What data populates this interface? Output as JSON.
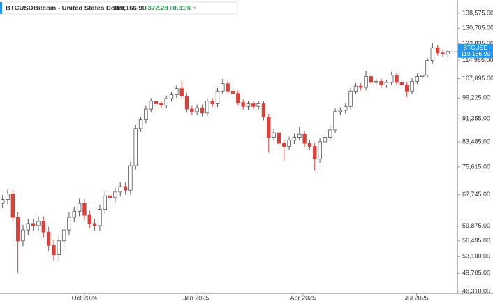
{
  "header": {
    "symbol": "BTCUSD",
    "name": "Bitcoin - United States Dollar",
    "price": "119,166.90",
    "change": "+372.28",
    "change_percent": "+0.31%"
  },
  "chart_data": {
    "type": "candlestick",
    "log": true,
    "up_color": "#ffffff",
    "up_edge": "#555555",
    "down_color": "#d9413a",
    "price_badge_color": "#2196f3",
    "ylim": [
      45930,
      146000
    ],
    "yticks": [
      {
        "value": 46310,
        "label": "46,310.00"
      },
      {
        "value": 49705,
        "label": "49,705.00"
      },
      {
        "value": 53100,
        "label": "53,100.00"
      },
      {
        "value": 56495,
        "label": "56,495.00"
      },
      {
        "value": 59875,
        "label": "59,875.00"
      },
      {
        "value": 67745,
        "label": "67,745.00"
      },
      {
        "value": 75615,
        "label": "75,615.00"
      },
      {
        "value": 83485,
        "label": "83,485.00"
      },
      {
        "value": 91355,
        "label": "91,355.00"
      },
      {
        "value": 99225,
        "label": "99,225.00"
      },
      {
        "value": 107095,
        "label": "107,095.00"
      },
      {
        "value": 114965,
        "label": "114,965.00"
      },
      {
        "value": 122835,
        "label": "122,835.00"
      },
      {
        "value": 130705,
        "label": "130,705.00"
      },
      {
        "value": 138575,
        "label": "138,575.00"
      }
    ],
    "xticks": [
      {
        "value": 16,
        "label": "Oct 2024"
      },
      {
        "value": 37.8,
        "label": "Jan 2025"
      },
      {
        "value": 58.7,
        "label": "Apr 2025"
      },
      {
        "value": 80.9,
        "label": "Jul 2025"
      }
    ],
    "open": [
      65500,
      66500,
      68000,
      62000,
      56500,
      59000,
      60500,
      60000,
      61000,
      58500,
      55500,
      53500,
      56500,
      59000,
      62000,
      63500,
      65500,
      62500,
      60500,
      60000,
      64000,
      67500,
      67000,
      68500,
      70000,
      69000,
      76000,
      88000,
      91000,
      95000,
      98000,
      97000,
      96500,
      99000,
      100500,
      103000,
      100000,
      95000,
      94000,
      95500,
      93500,
      98000,
      97000,
      102000,
      105000,
      102000,
      101000,
      97500,
      96000,
      97000,
      96000,
      97000,
      92000,
      85000,
      86500,
      83000,
      82000,
      84000,
      85000,
      86000,
      83000,
      82000,
      78000,
      83500,
      85000,
      87500,
      94000,
      94500,
      96000,
      102000,
      104000,
      103500,
      108000,
      105500,
      106000,
      104500,
      105500,
      108500,
      105500,
      104500,
      102000,
      106000,
      108000,
      108500,
      115000,
      121000,
      118500,
      118000
    ],
    "high": [
      67700,
      69200,
      69200,
      63200,
      60200,
      61700,
      61700,
      62200,
      62200,
      59700,
      56700,
      57700,
      60200,
      63200,
      64700,
      66700,
      66700,
      63700,
      61700,
      65200,
      68700,
      68700,
      69700,
      71200,
      71200,
      77200,
      89200,
      92200,
      96200,
      99200,
      99200,
      98200,
      100200,
      101700,
      104200,
      106500,
      101200,
      96200,
      96700,
      96700,
      99200,
      99200,
      103200,
      107000,
      106200,
      103200,
      102200,
      98700,
      98200,
      98200,
      98200,
      98200,
      93200,
      87700,
      87700,
      84200,
      85200,
      86200,
      88500,
      87200,
      84200,
      83200,
      84700,
      86200,
      88700,
      95200,
      95700,
      97200,
      103200,
      105200,
      105200,
      110500,
      109200,
      107200,
      107200,
      106700,
      110000,
      109700,
      106700,
      105700,
      107200,
      109200,
      109700,
      116200,
      123200,
      122200,
      119700,
      120300
    ],
    "low": [
      64300,
      65300,
      60800,
      49700,
      55300,
      57800,
      58800,
      58800,
      57300,
      54300,
      52300,
      52300,
      55300,
      57800,
      60800,
      62300,
      61300,
      59300,
      58800,
      58800,
      62800,
      65800,
      65800,
      67300,
      67800,
      67800,
      74800,
      86800,
      89800,
      93800,
      95800,
      95300,
      95300,
      97800,
      99300,
      98800,
      93800,
      92800,
      92800,
      92300,
      92300,
      95800,
      95800,
      100800,
      100800,
      99800,
      96300,
      94800,
      94800,
      94800,
      94800,
      90800,
      80000,
      83800,
      81800,
      77500,
      80800,
      82800,
      83800,
      81800,
      80800,
      74500,
      76800,
      82300,
      83800,
      86300,
      92800,
      93300,
      94800,
      100800,
      102300,
      102300,
      104300,
      104300,
      103300,
      103300,
      104300,
      104300,
      103300,
      99500,
      100800,
      104800,
      106800,
      107300,
      113800,
      117300,
      116500,
      116800
    ],
    "close": [
      66500,
      68000,
      62000,
      56500,
      59000,
      60500,
      60000,
      61000,
      58500,
      55500,
      53500,
      56500,
      59000,
      62000,
      63500,
      65500,
      62500,
      60500,
      60000,
      64000,
      67500,
      67000,
      68500,
      70000,
      69000,
      76000,
      88000,
      91000,
      95000,
      98000,
      97000,
      96500,
      99000,
      100500,
      103000,
      100000,
      95000,
      94000,
      95500,
      93500,
      98000,
      97000,
      102000,
      105000,
      102000,
      101000,
      97500,
      96000,
      97000,
      96000,
      97000,
      92000,
      85000,
      86500,
      83000,
      82000,
      84000,
      85000,
      86000,
      83000,
      82000,
      78000,
      83500,
      85000,
      87500,
      94000,
      94500,
      96000,
      102000,
      104000,
      103500,
      108000,
      105500,
      106000,
      104500,
      105500,
      108500,
      105500,
      104500,
      102000,
      106000,
      108000,
      108500,
      115000,
      121000,
      118500,
      118000,
      119166.9
    ]
  }
}
